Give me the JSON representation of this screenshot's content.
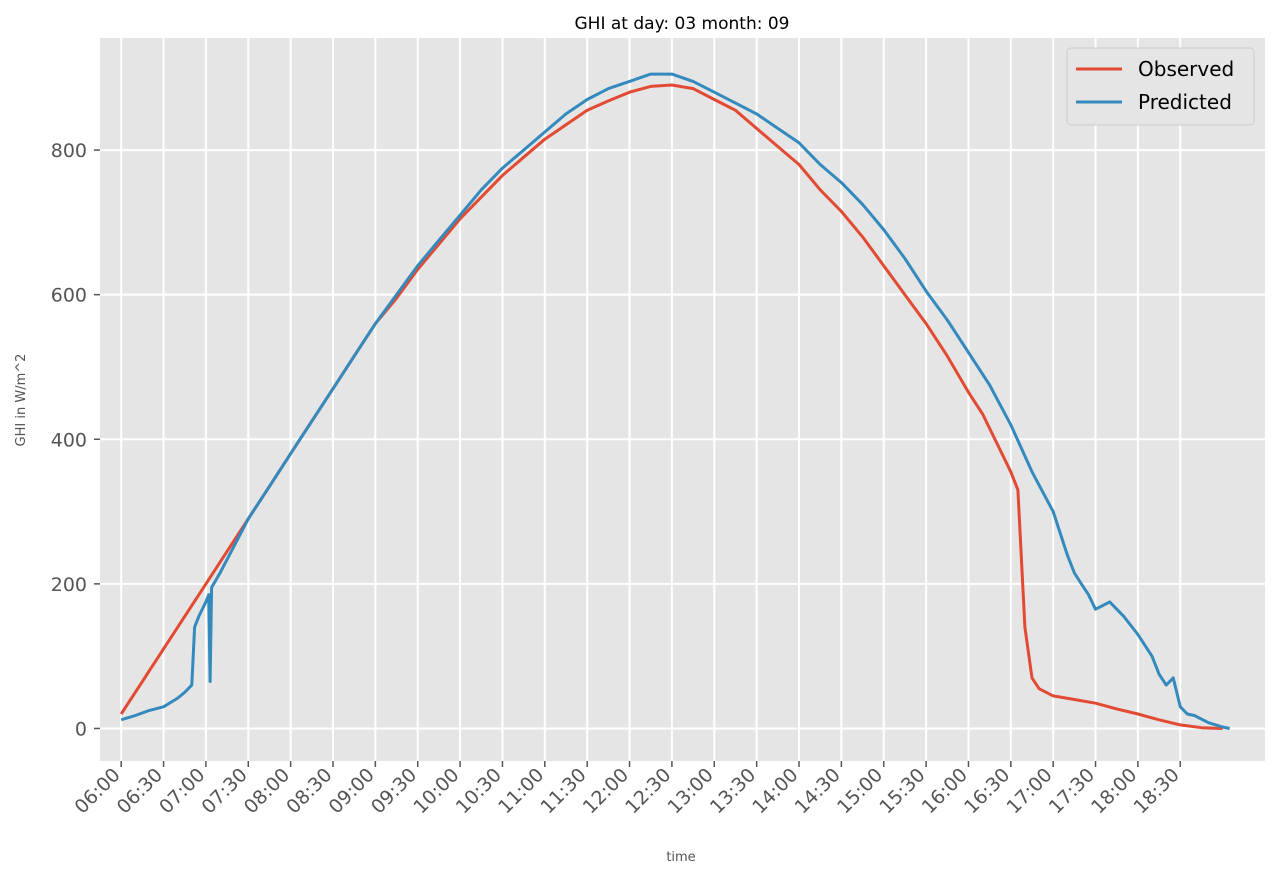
{
  "chart_data": {
    "type": "line",
    "title": "GHI at day: 03 month: 09",
    "xlabel": "time",
    "ylabel": "GHI in W/m^2",
    "x_unit": "minutes-of-day",
    "xlim": [
      "05:45",
      "19:30"
    ],
    "ylim": [
      -45,
      955
    ],
    "grid": true,
    "legend_position": "top-right",
    "background_color": "#E5E5E5",
    "y_ticks": [
      0,
      200,
      400,
      600,
      800
    ],
    "x_ticks": [
      "06:00",
      "06:30",
      "07:00",
      "07:30",
      "08:00",
      "08:30",
      "09:00",
      "09:30",
      "10:00",
      "10:30",
      "11:00",
      "11:30",
      "12:00",
      "12:30",
      "13:00",
      "13:30",
      "14:00",
      "14:30",
      "15:00",
      "15:30",
      "16:00",
      "16:30",
      "17:00",
      "17:30",
      "18:00",
      "18:30"
    ],
    "series": [
      {
        "name": "Observed",
        "color": "#E24A33",
        "points": [
          [
            "06:00",
            20
          ],
          [
            "06:05",
            35
          ],
          [
            "06:10",
            50
          ],
          [
            "06:15",
            65
          ],
          [
            "06:20",
            80
          ],
          [
            "06:25",
            95
          ],
          [
            "06:30",
            110
          ],
          [
            "06:40",
            140
          ],
          [
            "06:50",
            170
          ],
          [
            "07:00",
            200
          ],
          [
            "07:15",
            245
          ],
          [
            "07:30",
            290
          ],
          [
            "07:45",
            335
          ],
          [
            "08:00",
            380
          ],
          [
            "08:15",
            425
          ],
          [
            "08:30",
            470
          ],
          [
            "08:45",
            515
          ],
          [
            "09:00",
            560
          ],
          [
            "09:15",
            595
          ],
          [
            "09:30",
            635
          ],
          [
            "09:45",
            670
          ],
          [
            "10:00",
            705
          ],
          [
            "10:15",
            735
          ],
          [
            "10:30",
            765
          ],
          [
            "10:45",
            790
          ],
          [
            "11:00",
            815
          ],
          [
            "11:15",
            835
          ],
          [
            "11:30",
            855
          ],
          [
            "11:45",
            868
          ],
          [
            "12:00",
            880
          ],
          [
            "12:15",
            888
          ],
          [
            "12:30",
            890
          ],
          [
            "12:45",
            885
          ],
          [
            "13:00",
            870
          ],
          [
            "13:15",
            855
          ],
          [
            "13:30",
            830
          ],
          [
            "13:45",
            805
          ],
          [
            "14:00",
            780
          ],
          [
            "14:15",
            745
          ],
          [
            "14:30",
            715
          ],
          [
            "14:45",
            680
          ],
          [
            "15:00",
            640
          ],
          [
            "15:15",
            600
          ],
          [
            "15:30",
            560
          ],
          [
            "15:45",
            515
          ],
          [
            "16:00",
            465
          ],
          [
            "16:10",
            435
          ],
          [
            "16:20",
            395
          ],
          [
            "16:30",
            355
          ],
          [
            "16:35",
            330
          ],
          [
            "16:40",
            140
          ],
          [
            "16:45",
            70
          ],
          [
            "16:50",
            55
          ],
          [
            "17:00",
            45
          ],
          [
            "17:15",
            40
          ],
          [
            "17:30",
            35
          ],
          [
            "17:45",
            27
          ],
          [
            "18:00",
            20
          ],
          [
            "18:15",
            12
          ],
          [
            "18:30",
            5
          ],
          [
            "18:45",
            1
          ],
          [
            "19:00",
            0
          ]
        ]
      },
      {
        "name": "Predicted",
        "color": "#348ABD",
        "points": [
          [
            "06:00",
            12
          ],
          [
            "06:10",
            18
          ],
          [
            "06:20",
            25
          ],
          [
            "06:30",
            30
          ],
          [
            "06:40",
            42
          ],
          [
            "06:45",
            50
          ],
          [
            "06:50",
            60
          ],
          [
            "06:52",
            140
          ],
          [
            "06:55",
            155
          ],
          [
            "07:00",
            175
          ],
          [
            "07:02",
            185
          ],
          [
            "07:03",
            65
          ],
          [
            "07:04",
            195
          ],
          [
            "07:10",
            215
          ],
          [
            "07:30",
            290
          ],
          [
            "07:45",
            335
          ],
          [
            "08:00",
            380
          ],
          [
            "08:15",
            425
          ],
          [
            "08:30",
            470
          ],
          [
            "08:45",
            515
          ],
          [
            "09:00",
            560
          ],
          [
            "09:15",
            600
          ],
          [
            "09:30",
            640
          ],
          [
            "09:45",
            675
          ],
          [
            "10:00",
            710
          ],
          [
            "10:15",
            745
          ],
          [
            "10:30",
            775
          ],
          [
            "10:45",
            800
          ],
          [
            "11:00",
            825
          ],
          [
            "11:15",
            850
          ],
          [
            "11:30",
            870
          ],
          [
            "11:45",
            885
          ],
          [
            "12:00",
            895
          ],
          [
            "12:15",
            905
          ],
          [
            "12:30",
            905
          ],
          [
            "12:45",
            895
          ],
          [
            "13:00",
            880
          ],
          [
            "13:15",
            865
          ],
          [
            "13:30",
            850
          ],
          [
            "13:45",
            830
          ],
          [
            "14:00",
            810
          ],
          [
            "14:15",
            780
          ],
          [
            "14:30",
            755
          ],
          [
            "14:45",
            725
          ],
          [
            "15:00",
            690
          ],
          [
            "15:15",
            650
          ],
          [
            "15:30",
            605
          ],
          [
            "15:45",
            565
          ],
          [
            "16:00",
            520
          ],
          [
            "16:15",
            475
          ],
          [
            "16:30",
            420
          ],
          [
            "16:45",
            355
          ],
          [
            "17:00",
            300
          ],
          [
            "17:10",
            240
          ],
          [
            "17:15",
            215
          ],
          [
            "17:20",
            200
          ],
          [
            "17:25",
            185
          ],
          [
            "17:30",
            165
          ],
          [
            "17:35",
            170
          ],
          [
            "17:40",
            175
          ],
          [
            "17:50",
            155
          ],
          [
            "18:00",
            130
          ],
          [
            "18:10",
            100
          ],
          [
            "18:15",
            75
          ],
          [
            "18:20",
            60
          ],
          [
            "18:25",
            70
          ],
          [
            "18:30",
            30
          ],
          [
            "18:35",
            20
          ],
          [
            "18:40",
            18
          ],
          [
            "18:50",
            8
          ],
          [
            "19:00",
            2
          ],
          [
            "19:05",
            0
          ]
        ]
      }
    ]
  }
}
